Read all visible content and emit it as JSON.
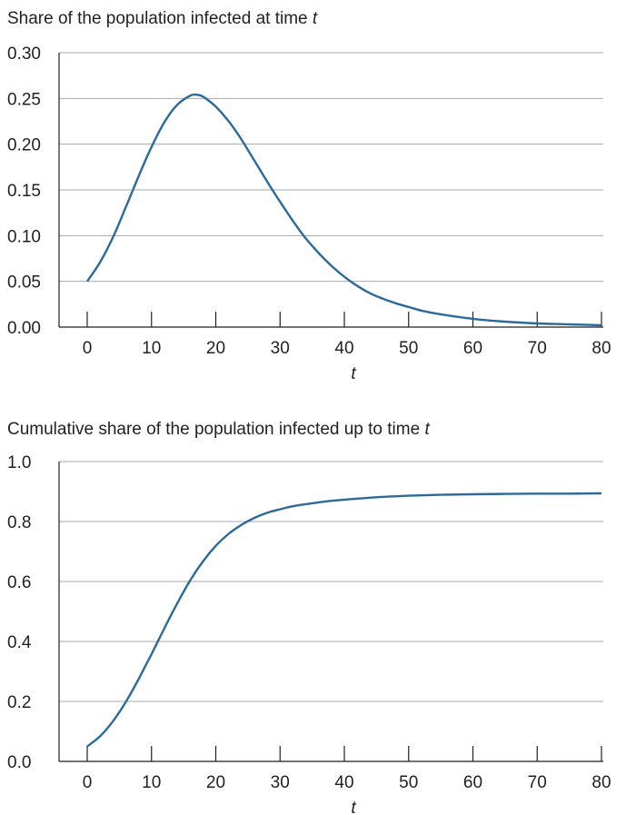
{
  "chart_data": [
    {
      "type": "line",
      "title": "Share of the population infected at time",
      "title_var": "t",
      "xlabel": "t",
      "ylabel": "",
      "xlim": [
        0,
        80
      ],
      "ylim": [
        0,
        0.3
      ],
      "x_ticks": [
        0,
        10,
        20,
        30,
        40,
        50,
        60,
        70,
        80
      ],
      "y_ticks": [
        "0.00",
        "0.05",
        "0.10",
        "0.15",
        "0.20",
        "0.25",
        "0.30"
      ],
      "grid": "horizontal",
      "line_color": "#2b6a9a",
      "series": [
        {
          "x": [
            0,
            2,
            4,
            6,
            8,
            10,
            12,
            14,
            16,
            17,
            18,
            20,
            22,
            24,
            26,
            28,
            30,
            32,
            34,
            36,
            38,
            40,
            42,
            44,
            46,
            48,
            50,
            52,
            55,
            60,
            65,
            70,
            75,
            80
          ],
          "y": [
            0.05,
            0.071,
            0.098,
            0.131,
            0.165,
            0.197,
            0.224,
            0.243,
            0.253,
            0.254,
            0.252,
            0.241,
            0.225,
            0.205,
            0.182,
            0.159,
            0.137,
            0.116,
            0.097,
            0.081,
            0.067,
            0.055,
            0.045,
            0.037,
            0.031,
            0.026,
            0.022,
            0.018,
            0.014,
            0.009,
            0.006,
            0.004,
            0.003,
            0.002
          ]
        }
      ]
    },
    {
      "type": "line",
      "title": "Cumulative share of the population infected up to time",
      "title_var": "t",
      "xlabel": "t",
      "ylabel": "",
      "xlim": [
        0,
        80
      ],
      "ylim": [
        0,
        1.0
      ],
      "x_ticks": [
        0,
        10,
        20,
        30,
        40,
        50,
        60,
        70,
        80
      ],
      "y_ticks": [
        "0.0",
        "0.2",
        "0.4",
        "0.6",
        "0.8",
        "1.0"
      ],
      "grid": "horizontal",
      "line_color": "#2b6a9a",
      "series": [
        {
          "x": [
            0,
            2,
            4,
            6,
            8,
            10,
            12,
            14,
            16,
            18,
            20,
            22,
            24,
            26,
            28,
            30,
            32,
            34,
            36,
            38,
            40,
            45,
            50,
            55,
            60,
            65,
            70,
            75,
            80
          ],
          "y": [
            0.05,
            0.084,
            0.134,
            0.198,
            0.275,
            0.358,
            0.444,
            0.527,
            0.603,
            0.667,
            0.719,
            0.759,
            0.789,
            0.812,
            0.829,
            0.841,
            0.851,
            0.858,
            0.864,
            0.869,
            0.873,
            0.881,
            0.886,
            0.889,
            0.891,
            0.892,
            0.893,
            0.893,
            0.894
          ]
        }
      ]
    }
  ]
}
